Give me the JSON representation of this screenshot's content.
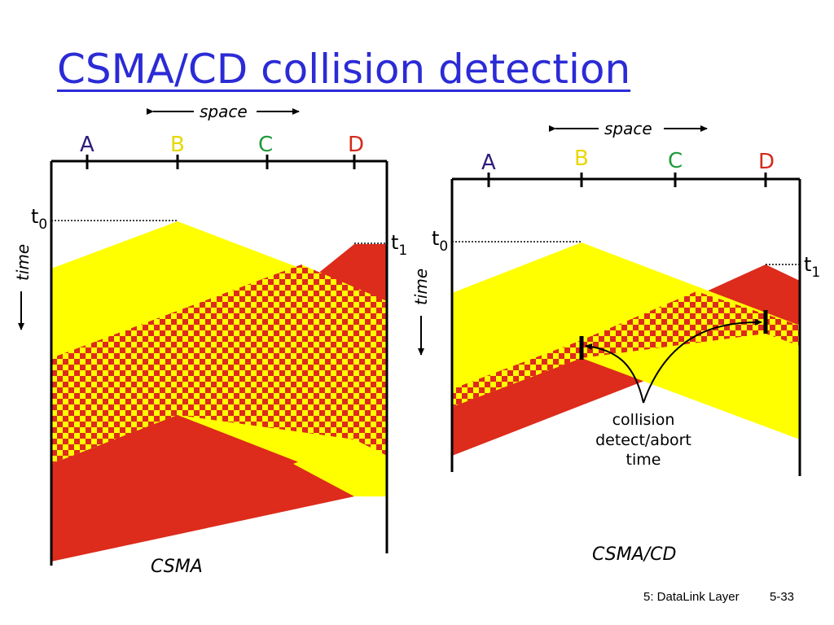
{
  "title": "CSMA/CD collision detection",
  "space_label": "space",
  "time_label": "time",
  "nodes": [
    {
      "label": "A",
      "color": "#2e1c7a"
    },
    {
      "label": "B",
      "color": "#e8d800"
    },
    {
      "label": "C",
      "color": "#1e9a3a"
    },
    {
      "label": "D",
      "color": "#d42a1a"
    }
  ],
  "t0": {
    "base": "t",
    "sub": "0"
  },
  "t1": {
    "base": "t",
    "sub": "1"
  },
  "left_caption": "CSMA",
  "right_caption": "CSMA/CD",
  "annotation": [
    "collision",
    "detect/abort",
    "time"
  ],
  "footer": {
    "left": "5: DataLink Layer",
    "right": "5-33"
  },
  "colors": {
    "yellow": "#ffff00",
    "red": "#dd2b1c",
    "title": "#2b2bd6"
  }
}
